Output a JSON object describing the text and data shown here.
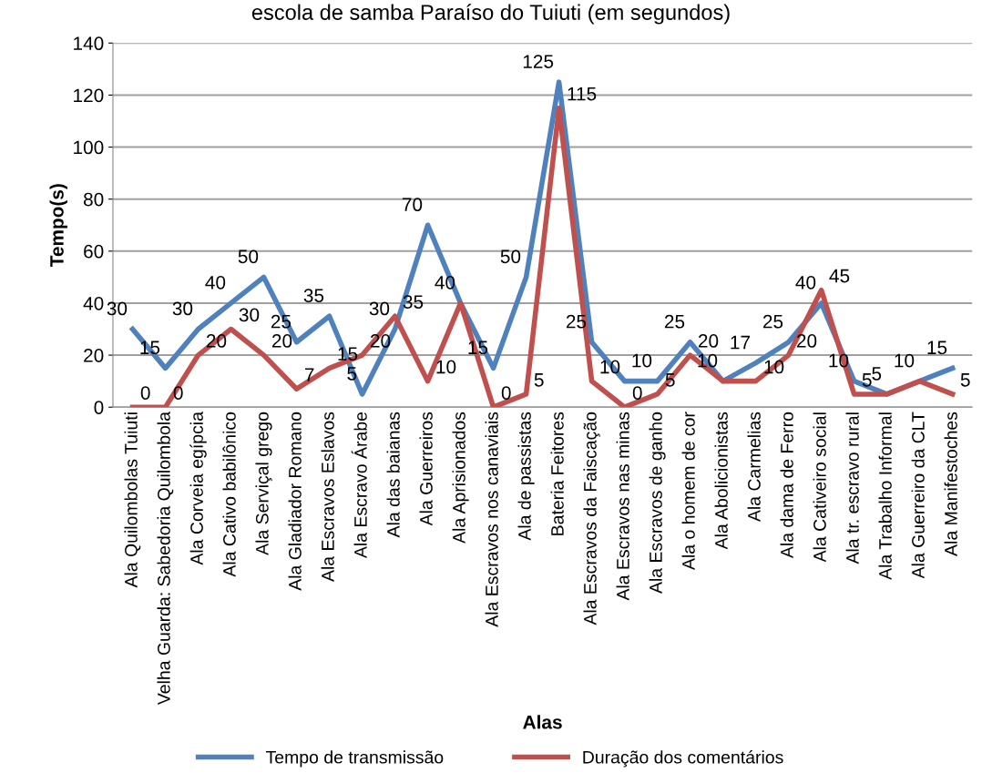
{
  "chart_data": {
    "type": "line",
    "title": "escola de samba Paraíso do Tuiuti (em segundos)",
    "xlabel": "Alas",
    "ylabel": "Tempo(s)",
    "categories": [
      "Ala Quilombolas Tuiuti",
      "Velha Guarda: Sabedoria Quilombola",
      "Ala Corveia egípcia",
      "Ala Cativo babilônico",
      "Ala Serviçal grego",
      "Ala Gladiador Romano",
      "Ala Escravos Eslavos",
      "Ala Escravo Árabe",
      "Ala das baianas",
      "Ala Guerreiros",
      "Ala Aprisionados",
      "Ala Escravos nos canaviais",
      "Ala de passistas",
      "Bateria Feitores",
      "Ala Escravos da Faiscação",
      "Ala Escravos nas minas",
      "Ala Escravos de ganho",
      "Ala o homem de cor",
      "Ala Abolicionistas",
      "Ala Carmelias",
      "Ala dama de Ferro",
      "Ala Cativeiro social",
      "Ala tr. escravo rural",
      "Ala Trabalho Informal",
      "Ala Guerreiro da CLT",
      "Ala Manifestoches"
    ],
    "series": [
      {
        "name": "Tempo de transmissão",
        "color": "#4f81bd",
        "values": [
          30,
          15,
          30,
          40,
          50,
          25,
          35,
          5,
          30,
          70,
          40,
          15,
          50,
          125,
          25,
          10,
          10,
          25,
          10,
          17,
          25,
          40,
          10,
          5,
          10,
          15
        ],
        "value_labels": [
          "30",
          "15",
          "30",
          "40",
          "50",
          "25",
          "35",
          "5",
          "30",
          "70",
          "40",
          "15",
          "50",
          "125",
          "25",
          null,
          "10",
          "25",
          "10",
          "17",
          "25",
          "40",
          "10",
          "5",
          "10",
          "15"
        ]
      },
      {
        "name": "Duração dos comentários",
        "color": "#c0504d",
        "values": [
          0,
          0,
          20,
          30,
          20,
          7,
          15,
          20,
          35,
          10,
          40,
          0,
          5,
          115,
          10,
          0,
          5,
          20,
          10,
          10,
          20,
          45,
          5,
          5,
          10,
          5
        ],
        "value_labels": [
          "0",
          "0",
          "20",
          "30",
          "20",
          "7",
          "15",
          "20",
          "35",
          "10",
          null,
          "0",
          "5",
          "115",
          "10",
          "0",
          "5",
          "20",
          null,
          "10",
          "20",
          "45",
          "5",
          null,
          null,
          "5"
        ]
      }
    ],
    "ylim": [
      0,
      140
    ],
    "yticks": [
      0,
      20,
      40,
      60,
      80,
      100,
      120,
      140
    ],
    "grid": "y",
    "legend": "bottom",
    "marker": "none",
    "line_style": "solid"
  }
}
